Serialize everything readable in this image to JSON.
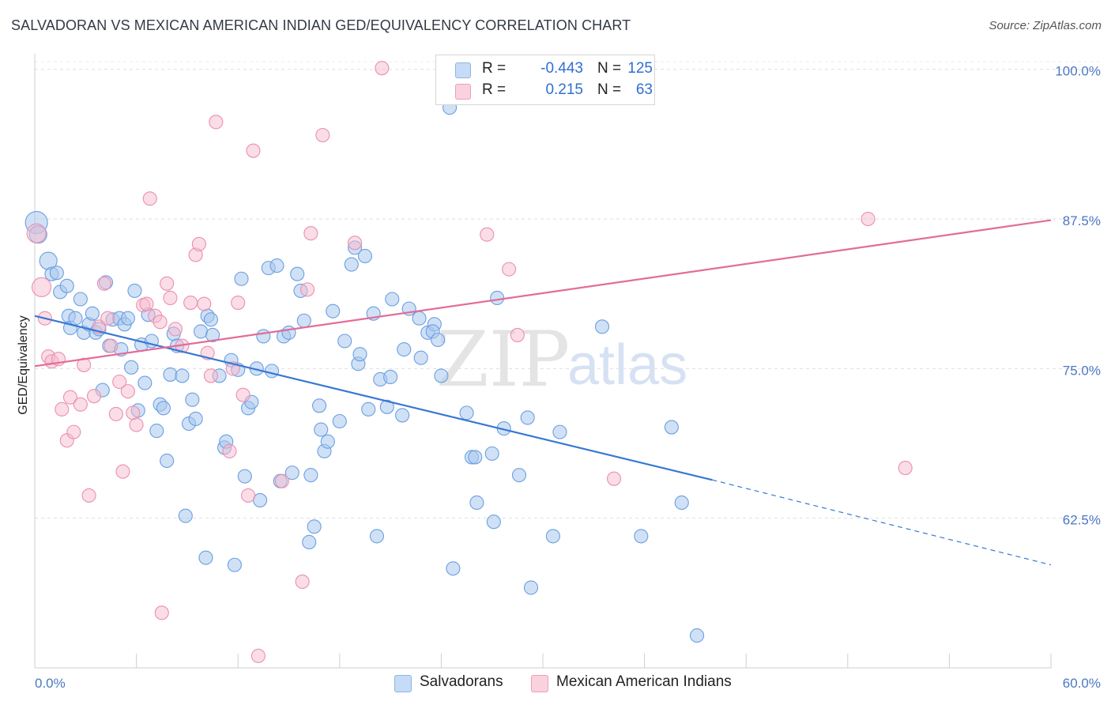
{
  "title": "SALVADORAN VS MEXICAN AMERICAN INDIAN GED/EQUIVALENCY CORRELATION CHART",
  "source": "Source: ZipAtlas.com",
  "watermark": {
    "zip": "ZIP",
    "atlas": "atlas"
  },
  "legend": {
    "rows": [
      {
        "r_label": "R =",
        "r_value": "-0.443",
        "n_label": "N =",
        "n_value": "125",
        "color": "#a9c8ef"
      },
      {
        "r_label": "R =",
        "r_value": "0.215",
        "n_label": "N =",
        "n_value": "63",
        "color": "#f6bccd"
      }
    ]
  },
  "bottom_legend": [
    {
      "label": "Salvadorans",
      "color": "#a9c8ef"
    },
    {
      "label": "Mexican American Indians",
      "color": "#f6bccd"
    }
  ],
  "chart_data": {
    "type": "scatter",
    "title": "SALVADORAN VS MEXICAN AMERICAN INDIAN GED/EQUIVALENCY CORRELATION CHART",
    "xlabel": "",
    "ylabel": "GED/Equivalency",
    "xlim": [
      0,
      60
    ],
    "ylim": [
      50,
      101.3
    ],
    "x_tick_labels": [
      "0.0%",
      "60.0%"
    ],
    "y_tick_labels": [
      "100.0%",
      "87.5%",
      "75.0%",
      "62.5%"
    ],
    "y_ticks": [
      100,
      87.5,
      75,
      62.5
    ],
    "grid": "horizontal dashed",
    "legend_position": "top-center",
    "colors": {
      "blue": "#6a9fe0",
      "blue_fill": "#a9c8ef",
      "pink": "#ec8fae",
      "pink_fill": "#f6bccd",
      "blue_line": "#3878d4",
      "pink_line": "#e26d97"
    },
    "series": [
      {
        "name": "Salvadorans",
        "color": "#6a9fe0",
        "trend": {
          "x0": 0,
          "y0": 79.4,
          "x1": 40,
          "y1": 65.7,
          "dash_to_x": 60,
          "dash_to_y": 58.6
        },
        "points": [
          [
            0.1,
            87.2
          ],
          [
            0.2,
            86.2
          ],
          [
            0.8,
            84.0
          ],
          [
            1.0,
            82.9
          ],
          [
            1.3,
            83.0
          ],
          [
            1.5,
            81.4
          ],
          [
            1.9,
            81.9
          ],
          [
            2.0,
            79.4
          ],
          [
            2.1,
            78.4
          ],
          [
            2.4,
            79.2
          ],
          [
            2.7,
            80.8
          ],
          [
            2.9,
            78.0
          ],
          [
            3.2,
            78.7
          ],
          [
            3.4,
            79.6
          ],
          [
            3.6,
            78.0
          ],
          [
            3.8,
            78.3
          ],
          [
            4.0,
            73.2
          ],
          [
            4.2,
            82.2
          ],
          [
            4.4,
            76.9
          ],
          [
            4.6,
            79.1
          ],
          [
            5.0,
            79.2
          ],
          [
            5.1,
            76.6
          ],
          [
            5.3,
            78.7
          ],
          [
            5.5,
            79.2
          ],
          [
            5.7,
            75.1
          ],
          [
            5.9,
            81.5
          ],
          [
            6.1,
            71.5
          ],
          [
            6.3,
            77.0
          ],
          [
            6.5,
            73.8
          ],
          [
            6.7,
            79.5
          ],
          [
            6.9,
            77.3
          ],
          [
            7.2,
            69.8
          ],
          [
            7.4,
            72.0
          ],
          [
            7.6,
            71.7
          ],
          [
            7.8,
            67.3
          ],
          [
            8.0,
            74.5
          ],
          [
            8.2,
            77.9
          ],
          [
            8.4,
            76.9
          ],
          [
            8.7,
            74.4
          ],
          [
            8.9,
            62.7
          ],
          [
            9.1,
            70.4
          ],
          [
            9.3,
            72.4
          ],
          [
            9.5,
            70.8
          ],
          [
            9.8,
            78.1
          ],
          [
            10.1,
            59.2
          ],
          [
            10.2,
            79.4
          ],
          [
            10.4,
            79.1
          ],
          [
            10.5,
            77.8
          ],
          [
            10.9,
            74.4
          ],
          [
            11.2,
            68.4
          ],
          [
            11.3,
            68.9
          ],
          [
            11.6,
            75.7
          ],
          [
            11.8,
            58.6
          ],
          [
            12.0,
            74.9
          ],
          [
            12.2,
            82.5
          ],
          [
            12.4,
            66.0
          ],
          [
            12.6,
            71.7
          ],
          [
            12.8,
            72.2
          ],
          [
            13.1,
            75.0
          ],
          [
            13.3,
            64.0
          ],
          [
            13.5,
            77.7
          ],
          [
            13.8,
            83.4
          ],
          [
            14.0,
            74.8
          ],
          [
            14.3,
            83.6
          ],
          [
            14.5,
            65.6
          ],
          [
            14.7,
            77.7
          ],
          [
            15.0,
            78.0
          ],
          [
            15.2,
            66.3
          ],
          [
            15.5,
            82.9
          ],
          [
            15.7,
            81.5
          ],
          [
            15.9,
            79.0
          ],
          [
            16.2,
            60.5
          ],
          [
            16.3,
            66.1
          ],
          [
            16.5,
            61.8
          ],
          [
            16.8,
            71.9
          ],
          [
            16.9,
            69.9
          ],
          [
            17.1,
            68.1
          ],
          [
            17.3,
            68.9
          ],
          [
            17.6,
            79.8
          ],
          [
            18.0,
            70.6
          ],
          [
            18.3,
            77.3
          ],
          [
            18.7,
            83.7
          ],
          [
            18.9,
            85.1
          ],
          [
            19.1,
            75.4
          ],
          [
            19.2,
            76.2
          ],
          [
            19.5,
            84.4
          ],
          [
            19.7,
            71.6
          ],
          [
            20.0,
            79.6
          ],
          [
            20.2,
            61.0
          ],
          [
            20.4,
            74.1
          ],
          [
            20.8,
            71.8
          ],
          [
            21.0,
            74.3
          ],
          [
            21.1,
            80.8
          ],
          [
            21.7,
            71.1
          ],
          [
            21.8,
            76.6
          ],
          [
            22.1,
            80.0
          ],
          [
            22.7,
            79.2
          ],
          [
            22.8,
            75.9
          ],
          [
            23.2,
            78.0
          ],
          [
            23.6,
            78.7
          ],
          [
            23.5,
            78.1
          ],
          [
            23.8,
            77.4
          ],
          [
            24.0,
            74.4
          ],
          [
            24.5,
            96.8
          ],
          [
            24.7,
            58.3
          ],
          [
            25.5,
            71.3
          ],
          [
            25.8,
            67.6
          ],
          [
            26.0,
            67.6
          ],
          [
            26.1,
            63.8
          ],
          [
            27.0,
            67.9
          ],
          [
            27.1,
            62.2
          ],
          [
            27.3,
            80.9
          ],
          [
            27.7,
            70.0
          ],
          [
            28.6,
            66.1
          ],
          [
            29.1,
            70.9
          ],
          [
            29.3,
            56.7
          ],
          [
            30.6,
            61.0
          ],
          [
            31.0,
            69.7
          ],
          [
            33.5,
            78.5
          ],
          [
            35.8,
            61.0
          ],
          [
            37.6,
            70.1
          ],
          [
            38.2,
            63.8
          ],
          [
            39.1,
            52.7
          ]
        ]
      },
      {
        "name": "Mexican American Indians",
        "color": "#ec8fae",
        "trend": {
          "x0": 0,
          "y0": 75.2,
          "x1": 60,
          "y1": 87.4
        },
        "points": [
          [
            0.1,
            86.3
          ],
          [
            0.4,
            81.8
          ],
          [
            0.6,
            79.2
          ],
          [
            0.8,
            76.0
          ],
          [
            1.0,
            75.6
          ],
          [
            1.4,
            75.8
          ],
          [
            1.6,
            71.6
          ],
          [
            1.9,
            69.0
          ],
          [
            2.1,
            72.6
          ],
          [
            2.3,
            69.7
          ],
          [
            2.7,
            72.0
          ],
          [
            2.9,
            75.3
          ],
          [
            3.2,
            64.4
          ],
          [
            3.5,
            72.7
          ],
          [
            3.8,
            78.5
          ],
          [
            4.1,
            82.1
          ],
          [
            4.3,
            79.2
          ],
          [
            4.5,
            76.9
          ],
          [
            4.8,
            71.2
          ],
          [
            5.0,
            73.9
          ],
          [
            5.2,
            66.4
          ],
          [
            5.5,
            73.1
          ],
          [
            5.8,
            71.3
          ],
          [
            6.0,
            70.3
          ],
          [
            6.4,
            80.3
          ],
          [
            6.6,
            80.4
          ],
          [
            6.8,
            89.2
          ],
          [
            7.1,
            79.4
          ],
          [
            7.4,
            78.9
          ],
          [
            7.5,
            54.6
          ],
          [
            7.8,
            82.1
          ],
          [
            8.0,
            80.9
          ],
          [
            8.3,
            78.3
          ],
          [
            8.7,
            76.9
          ],
          [
            9.2,
            80.5
          ],
          [
            9.5,
            84.5
          ],
          [
            9.7,
            85.4
          ],
          [
            10.0,
            80.4
          ],
          [
            10.2,
            76.3
          ],
          [
            10.4,
            74.4
          ],
          [
            10.7,
            95.6
          ],
          [
            11.5,
            68.1
          ],
          [
            11.7,
            75.0
          ],
          [
            12.0,
            80.5
          ],
          [
            12.3,
            72.8
          ],
          [
            12.6,
            64.4
          ],
          [
            12.9,
            93.2
          ],
          [
            13.2,
            51.0
          ],
          [
            14.6,
            65.6
          ],
          [
            15.8,
            57.2
          ],
          [
            16.1,
            81.6
          ],
          [
            16.3,
            86.3
          ],
          [
            17.0,
            94.5
          ],
          [
            18.9,
            85.5
          ],
          [
            20.5,
            100.1
          ],
          [
            26.7,
            86.2
          ],
          [
            28.0,
            83.3
          ],
          [
            28.5,
            77.8
          ],
          [
            32.8,
            100.1
          ],
          [
            34.2,
            65.8
          ],
          [
            49.2,
            87.5
          ],
          [
            51.4,
            66.7
          ]
        ]
      }
    ]
  }
}
